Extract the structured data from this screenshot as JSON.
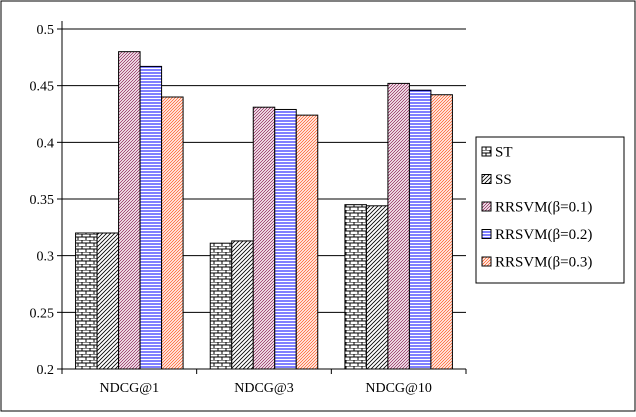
{
  "chart_data": {
    "type": "bar",
    "title": "",
    "xlabel": "",
    "ylabel": "",
    "categories": [
      "NDCG@1",
      "NDCG@3",
      "NDCG@10"
    ],
    "ylim": [
      0.2,
      0.5
    ],
    "yticks": [
      0.2,
      0.25,
      0.3,
      0.35,
      0.4,
      0.45,
      0.5
    ],
    "ytick_labels": [
      "0.2",
      "0.25",
      "0.3",
      "0.35",
      "0.4",
      "0.45",
      "0.5"
    ],
    "grid": true,
    "legend_position": "right",
    "series": [
      {
        "name": "ST",
        "values": [
          0.32,
          0.311,
          0.345
        ],
        "pattern": "brick",
        "color": "#000000"
      },
      {
        "name": "SS",
        "values": [
          0.32,
          0.313,
          0.344
        ],
        "pattern": "diagonal",
        "color": "#000000"
      },
      {
        "name": "RRSVM(β=0.1)",
        "values": [
          0.48,
          0.431,
          0.452
        ],
        "pattern": "diagonal",
        "color": "#993366"
      },
      {
        "name": "RRSVM(β=0.2)",
        "values": [
          0.467,
          0.429,
          0.446
        ],
        "pattern": "horizontal",
        "color": "#0000ff"
      },
      {
        "name": "RRSVM(β=0.3)",
        "values": [
          0.44,
          0.424,
          0.442
        ],
        "pattern": "diagonal",
        "color": "#ff6633"
      }
    ]
  }
}
